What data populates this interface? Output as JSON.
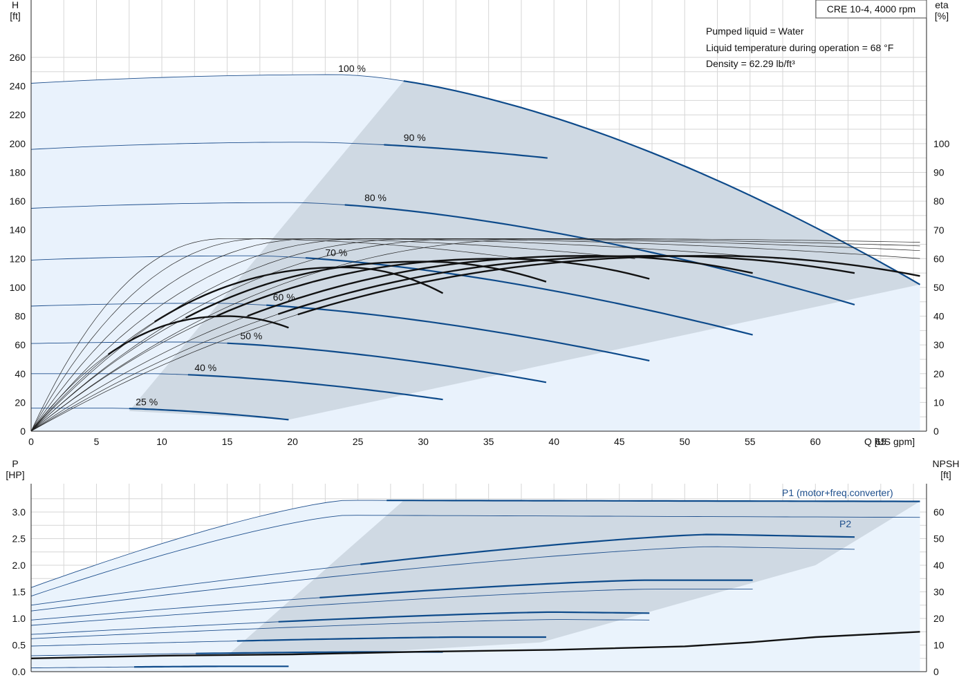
{
  "chart_data": [
    {
      "type": "line",
      "title": "CRE 10-4, 4000 rpm",
      "annotations": [
        "Pumped liquid = Water",
        "Liquid temperature during operation = 68 °F",
        "Density = 62.29 lb/ft³"
      ],
      "xlabel": "Q [US gpm]",
      "ylabel_left": "H\n[ft]",
      "ylabel_right": "eta\n[%]",
      "xlim": [
        0,
        68
      ],
      "ylim_left": [
        0,
        260
      ],
      "ylim_right": [
        0,
        100
      ],
      "x_ticks": [
        "0",
        "5",
        "10",
        "15",
        "20",
        "25",
        "30",
        "35",
        "40",
        "45",
        "50",
        "55",
        "60",
        "65"
      ],
      "y_ticks_left": [
        "0",
        "20",
        "40",
        "60",
        "80",
        "100",
        "120",
        "140",
        "160",
        "180",
        "200",
        "220",
        "240",
        "260"
      ],
      "y_ticks_right": [
        "0",
        "10",
        "20",
        "30",
        "40",
        "50",
        "60",
        "70",
        "80",
        "90",
        "100"
      ],
      "speed_labels": [
        {
          "text": "100 %",
          "x": 23.5,
          "y": 248
        },
        {
          "text": "90 %",
          "x": 28.5,
          "y": 200
        },
        {
          "text": "80 %",
          "x": 25.5,
          "y": 158
        },
        {
          "text": "70 %",
          "x": 22.5,
          "y": 120
        },
        {
          "text": "60 %",
          "x": 18.5,
          "y": 89
        },
        {
          "text": "50 %",
          "x": 16,
          "y": 62
        },
        {
          "text": "40 %",
          "x": 12.5,
          "y": 40
        },
        {
          "text": "25 %",
          "x": 8,
          "y": 16
        }
      ],
      "series": [
        {
          "name": "100 %",
          "qmax": 68,
          "h0": 242,
          "hpk": 248,
          "qpk": 23.5,
          "hend": 102,
          "qop": 28.5
        },
        {
          "name": "90 %",
          "qmax": 39.5,
          "h0": 196,
          "hpk": 201,
          "qpk": 21,
          "hend": 190,
          "qop": 27
        },
        {
          "name": "80 %",
          "qmax": 63,
          "h0": 155,
          "hpk": 159,
          "qpk": 20,
          "hend": 88,
          "qop": 24
        },
        {
          "name": "70 %",
          "qmax": 55.2,
          "h0": 119,
          "hpk": 122,
          "qpk": 17,
          "hend": 67,
          "qop": 21
        },
        {
          "name": "60 %",
          "qmax": 47.3,
          "h0": 87,
          "hpk": 89,
          "qpk": 14,
          "hend": 49,
          "qop": 18
        },
        {
          "name": "50 %",
          "qmax": 39.4,
          "h0": 61,
          "hpk": 62,
          "qpk": 12,
          "hend": 34,
          "qop": 15
        },
        {
          "name": "40 %",
          "qmax": 31.5,
          "h0": 40,
          "hpk": 40,
          "qpk": 9,
          "hend": 22,
          "qop": 12
        },
        {
          "name": "25 %",
          "qmax": 19.7,
          "h0": 16,
          "hpk": 16,
          "qpk": 6,
          "hend": 8,
          "qop": 7.5
        }
      ],
      "eta_series": [
        {
          "qmax": 68,
          "peak": 61,
          "qpk": 52,
          "end": 54
        },
        {
          "qmax": 63,
          "peak": 61,
          "qpk": 48,
          "end": 55
        },
        {
          "qmax": 55.2,
          "peak": 61,
          "qpk": 43,
          "end": 55
        },
        {
          "qmax": 47.3,
          "peak": 60,
          "qpk": 36,
          "end": 53
        },
        {
          "qmax": 39.4,
          "peak": 59,
          "qpk": 30,
          "end": 52
        },
        {
          "qmax": 31.5,
          "peak": 57,
          "qpk": 24,
          "end": 48
        },
        {
          "qmax": 19.7,
          "peak": 40,
          "qpk": 15,
          "end": 36
        }
      ]
    },
    {
      "type": "line",
      "xlabel": "Q [US gpm]",
      "ylabel_left": "P\n[HP]",
      "ylabel_right": "NPSH\n[ft]",
      "xlim": [
        0,
        68
      ],
      "ylim_left": [
        0,
        3.3
      ],
      "ylim_right": [
        0,
        66
      ],
      "y_ticks_left": [
        "0.0",
        "0.5",
        "1.0",
        "1.5",
        "2.0",
        "2.5",
        "3.0"
      ],
      "y_ticks_right": [
        "0",
        "10",
        "20",
        "30",
        "40",
        "50",
        "60"
      ],
      "series_labels": [
        "P1 (motor+freq.converter)",
        "P2"
      ],
      "p1_series": [
        {
          "qmax": 68,
          "p0": 1.58,
          "pmax": 3.22,
          "qsat": 24,
          "end": 3.2
        },
        {
          "qmax": 63,
          "p0": 1.25,
          "pmax": 2.58,
          "qsat": 52,
          "end": 2.53
        },
        {
          "qmax": 55.2,
          "p0": 0.97,
          "pmax": 1.72,
          "qsat": 47,
          "end": 1.72
        },
        {
          "qmax": 47.3,
          "p0": 0.7,
          "pmax": 1.12,
          "qsat": 40,
          "end": 1.1
        },
        {
          "qmax": 39.4,
          "p0": 0.48,
          "pmax": 0.65,
          "qsat": 33,
          "end": 0.65
        },
        {
          "qmax": 31.5,
          "p0": 0.3,
          "pmax": 0.37,
          "qsat": 25,
          "end": 0.37
        },
        {
          "qmax": 19.7,
          "p0": 0.07,
          "pmax": 0.1,
          "qsat": 15,
          "end": 0.1
        }
      ],
      "p2_series": [
        {
          "qmax": 68,
          "p0": 1.42,
          "pmax": 2.94,
          "qsat": 24,
          "end": 2.9
        },
        {
          "qmax": 63,
          "p0": 1.14,
          "pmax": 2.35,
          "qsat": 52,
          "end": 2.3
        },
        {
          "qmax": 55.2,
          "p0": 0.87,
          "pmax": 1.55,
          "qsat": 47,
          "end": 1.55
        },
        {
          "qmax": 47.3,
          "p0": 0.62,
          "pmax": 0.98,
          "qsat": 40,
          "end": 0.97
        }
      ],
      "npsh": {
        "points": [
          [
            0,
            5
          ],
          [
            10,
            6
          ],
          [
            20,
            6.5
          ],
          [
            30,
            7.5
          ],
          [
            40,
            8.2
          ],
          [
            50,
            9.5
          ],
          [
            55,
            11
          ],
          [
            60,
            13
          ],
          [
            68,
            15
          ]
        ]
      }
    }
  ]
}
